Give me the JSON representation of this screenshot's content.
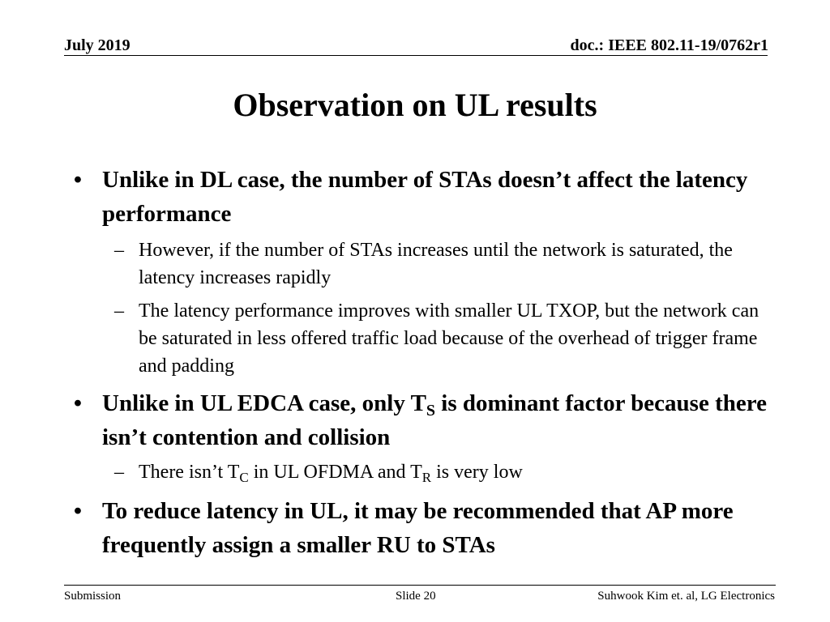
{
  "header": {
    "date": "July 2019",
    "doc": "doc.: IEEE 802.11-19/0762r1"
  },
  "title": "Observation on UL results",
  "bullets": {
    "b1": {
      "text": "Unlike in DL case, the number of STAs doesn’t affect the latency performance",
      "sub1": "However, if the number of STAs increases until the network is saturated, the latency increases rapidly",
      "sub2": "The latency performance improves with smaller UL TXOP, but the network can be saturated in less offered traffic load because of the overhead of trigger frame and padding"
    },
    "b2": {
      "text_pre": "Unlike in UL EDCA case, only T",
      "text_sub": "S",
      "text_post": " is dominant factor because there isn’t contention and collision",
      "sub1_pre": "There isn’t T",
      "sub1_sub1": "C",
      "sub1_mid": " in UL OFDMA and T",
      "sub1_sub2": "R",
      "sub1_post": " is very low"
    },
    "b3": {
      "text": "To reduce latency in UL, it may be recommended that AP more frequently assign a smaller RU to STAs"
    },
    "bullet_glyph": "•",
    "dash_glyph": "–"
  },
  "footer": {
    "left": "Submission",
    "center": "Slide 20",
    "right": "Suhwook Kim et. al, LG Electronics"
  }
}
